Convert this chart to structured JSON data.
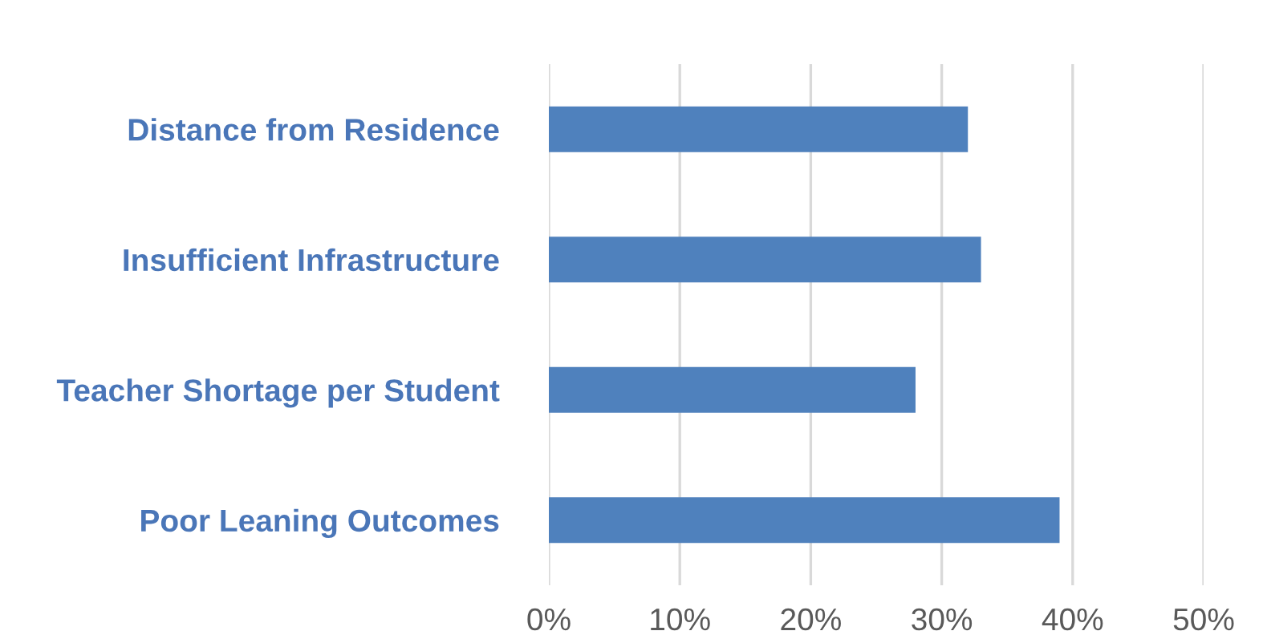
{
  "chart_data": {
    "type": "bar",
    "orientation": "horizontal",
    "categories": [
      "Distance from Residence",
      "Insufficient Infrastructure",
      "Teacher Shortage per Student",
      "Poor Leaning Outcomes"
    ],
    "values": [
      32,
      33,
      28,
      39
    ],
    "color": "#4f81bd",
    "xlim": [
      0,
      50
    ],
    "xticks": [
      {
        "value": 0,
        "label": "0%"
      },
      {
        "value": 10,
        "label": "10%"
      },
      {
        "value": 20,
        "label": "20%"
      },
      {
        "value": 30,
        "label": "30%"
      },
      {
        "value": 40,
        "label": "40%"
      },
      {
        "value": 50,
        "label": "50%"
      }
    ],
    "grid": "x",
    "legend": false
  }
}
